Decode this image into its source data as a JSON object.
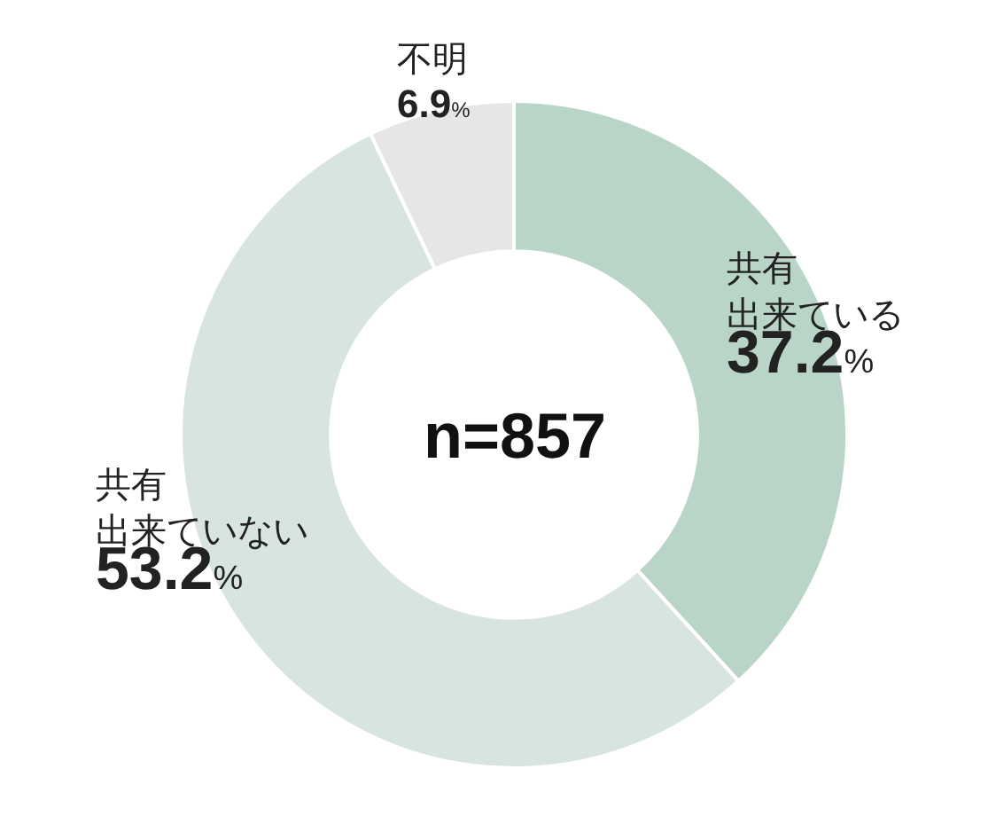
{
  "chart_data": {
    "type": "donut",
    "categories": [
      "共有出来ている",
      "共有出来ていない",
      "不明"
    ],
    "values": [
      37.2,
      53.2,
      6.9
    ],
    "value_labels": [
      "37.2%",
      "53.2%",
      "6.9%"
    ],
    "colors": [
      "#b9d5c8",
      "#d8e5de",
      "#e6e6e6"
    ],
    "annotations": [
      "n=857"
    ],
    "legend": false
  }
}
